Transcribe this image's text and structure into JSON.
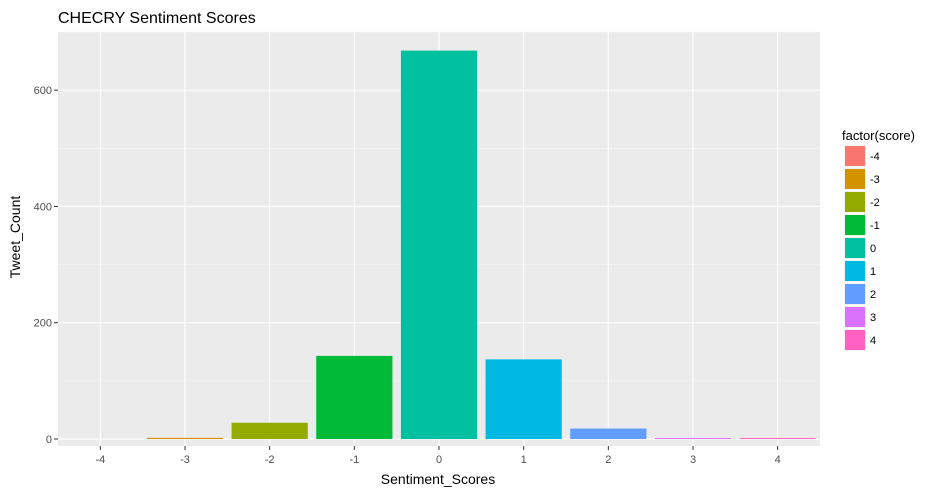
{
  "chart_data": {
    "type": "bar",
    "title": "CHECRY Sentiment Scores",
    "xlabel": "Sentiment_Scores",
    "ylabel": "Tweet_Count",
    "categories": [
      "-4",
      "-3",
      "-2",
      "-1",
      "0",
      "1",
      "2",
      "3",
      "4"
    ],
    "values": [
      0,
      2,
      28,
      143,
      668,
      137,
      18,
      1,
      1
    ],
    "colors": [
      "#F8766D",
      "#D39200",
      "#93AA00",
      "#00BA38",
      "#00C19F",
      "#00B9E3",
      "#619CFF",
      "#DB72FB",
      "#FF61C3"
    ],
    "ylim": [
      -12,
      700
    ],
    "yticks": [
      0,
      200,
      400,
      600
    ],
    "grid": true,
    "panel_background": "#EBEBEB",
    "legend": {
      "title": "factor(score)",
      "position": "right",
      "labels": [
        "-4",
        "-3",
        "-2",
        "-1",
        "0",
        "1",
        "2",
        "3",
        "4"
      ]
    }
  }
}
